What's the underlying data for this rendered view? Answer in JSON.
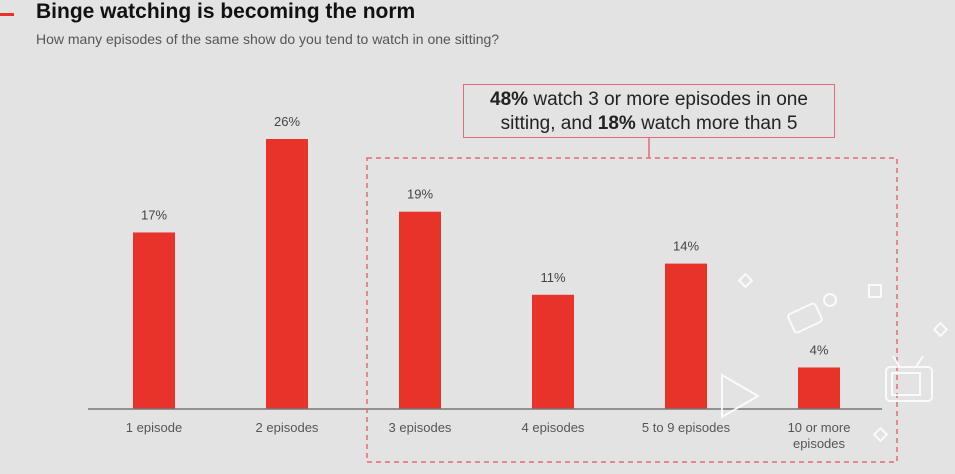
{
  "header": {
    "title": "Binge watching is becoming the norm",
    "subtitle": "How many episodes of the same show do you tend to watch in one sitting?"
  },
  "callout": {
    "line1_bold": "48%",
    "line1_rest": " watch 3 or more episodes in one",
    "line2_start": "sitting, and ",
    "line2_bold": "18%",
    "line2_rest": " watch more than 5"
  },
  "colors": {
    "bar": "#e8332a",
    "callout_border": "#e46a7a",
    "background": "#e3e3e3"
  },
  "decorations": [
    "diamond-icon",
    "square-icon",
    "camera-icon",
    "play-icon",
    "tv-icon"
  ],
  "chart_data": {
    "type": "bar",
    "categories": [
      "1 episode",
      "2 episodes",
      "3 episodes",
      "4 episodes",
      "5 to 9 episodes",
      "10 or more episodes"
    ],
    "category_lines": [
      [
        "1 episode"
      ],
      [
        "2 episodes"
      ],
      [
        "3 episodes"
      ],
      [
        "4 episodes"
      ],
      [
        "5 to 9 episodes"
      ],
      [
        "10 or more",
        "episodes"
      ]
    ],
    "values": [
      17,
      26,
      19,
      11,
      14,
      4
    ],
    "value_labels": [
      "17%",
      "26%",
      "19%",
      "11%",
      "14%",
      "4%"
    ],
    "ylim": [
      0,
      26
    ],
    "title": "Binge watching is becoming the norm",
    "grid": false,
    "highlight_range": [
      "3 episodes",
      "10 or more episodes"
    ]
  }
}
